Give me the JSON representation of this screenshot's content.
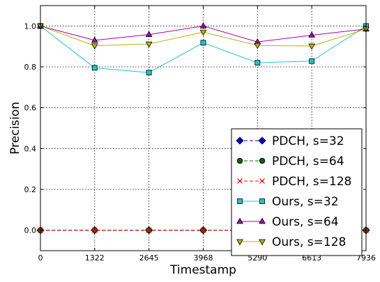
{
  "chart_data": {
    "type": "line",
    "title": "",
    "xlabel": "Timestamp",
    "ylabel": "Precision",
    "x": [
      0,
      1322,
      2645,
      3968,
      5290,
      6613,
      7936
    ],
    "xticks": [
      "0",
      "1322",
      "2645",
      "3968",
      "5290",
      "6613",
      "7936"
    ],
    "yticks": [
      "0.0",
      "0.2",
      "0.4",
      "0.6",
      "0.8",
      "1.0"
    ],
    "xlim": [
      0,
      7936
    ],
    "ylim": [
      -0.1,
      1.1
    ],
    "grid": true,
    "legend_position": "lower-right",
    "series": [
      {
        "name": "PDCH, s=32",
        "color": "#0000cc",
        "marker": "diamond",
        "linestyle": "dashed",
        "values": [
          0,
          0,
          0,
          0,
          0,
          0,
          0
        ]
      },
      {
        "name": "PDCH, s=64",
        "color": "#006400",
        "marker": "circle",
        "linestyle": "dashed",
        "values": [
          0,
          0,
          0,
          0,
          0,
          0,
          0
        ]
      },
      {
        "name": "PDCH, s=128",
        "color": "#ff0000",
        "marker": "x",
        "linestyle": "dashed",
        "values": [
          0,
          0,
          0,
          0,
          0,
          0,
          0
        ]
      },
      {
        "name": "Ours, s=32",
        "color": "#22c4c4",
        "marker": "square",
        "linestyle": "solid",
        "values": [
          1.0,
          0.795,
          0.772,
          0.918,
          0.82,
          0.828,
          1.0
        ]
      },
      {
        "name": "Ours, s=64",
        "color": "#aa00aa",
        "marker": "triangle-up",
        "linestyle": "solid",
        "values": [
          1.0,
          0.93,
          0.958,
          1.0,
          0.922,
          0.955,
          0.985
        ]
      },
      {
        "name": "Ours, s=128",
        "color": "#b5b500",
        "marker": "triangle-down",
        "linestyle": "solid",
        "values": [
          1.0,
          0.903,
          0.912,
          0.97,
          0.905,
          0.902,
          0.985
        ]
      }
    ]
  }
}
